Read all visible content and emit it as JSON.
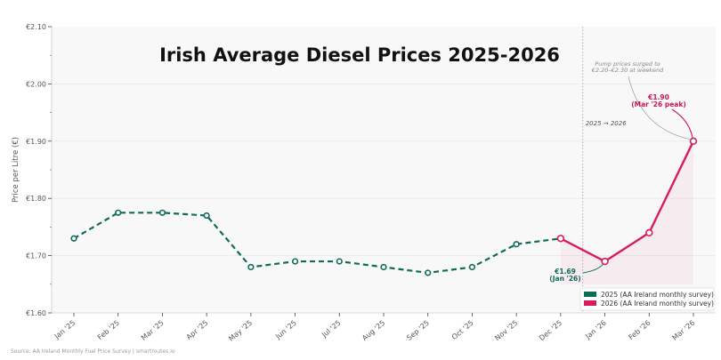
{
  "chart_data": {
    "type": "line",
    "title": "Irish Average Diesel Prices 2025-2026",
    "xlabel": "",
    "ylabel": "Price per Litre (€)",
    "ylim": [
      1.6,
      2.1
    ],
    "yticks": [
      1.6,
      1.7,
      1.8,
      1.9,
      2.0,
      2.1
    ],
    "ytick_labels": [
      "€1.60",
      "€1.70",
      "€1.80",
      "€1.90",
      "€2.00",
      "€2.10"
    ],
    "categories": [
      "Jan '25",
      "Feb '25",
      "Mar '25",
      "Apr '25",
      "May '25",
      "Jun '25",
      "Jul '25",
      "Aug '25",
      "Sep '25",
      "Oct '25",
      "Nov '25",
      "Dec '25",
      "Jan '26",
      "Feb '26",
      "Mar '26"
    ],
    "grid": true,
    "legend_position": "bottom-right",
    "series": [
      {
        "name": "2025 (AA Ireland monthly survey)",
        "color": "#0f6b57",
        "style": "dashed",
        "start_index": 0,
        "values": [
          1.73,
          1.775,
          1.775,
          1.77,
          1.68,
          1.69,
          1.69,
          1.68,
          1.67,
          1.68,
          1.72,
          1.73
        ]
      },
      {
        "name": "2026 (AA Ireland monthly survey)",
        "color": "#d81b5c",
        "style": "solid",
        "start_index": 11,
        "values": [
          1.73,
          1.69,
          1.74,
          1.9
        ]
      }
    ],
    "annotations": {
      "surge": "Pump prices surged to\n€2.20–€2.30 at weekend",
      "peak": "€1.90\n(Mar '26 peak)",
      "low": "€1.69\n(Jan '26)",
      "divider": "2025 → 2026"
    },
    "source": "Source: AA Ireland Monthly Fuel Price Survey  |  smartroutes.io"
  }
}
